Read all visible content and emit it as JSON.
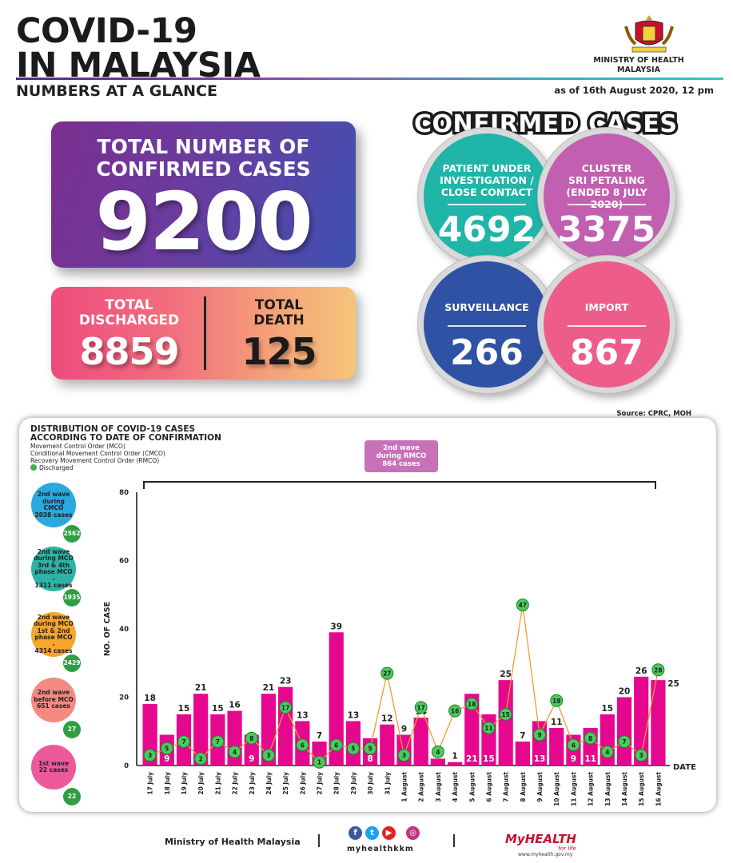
{
  "header": {
    "title_line1": "COVID-19",
    "title_line2": "IN MALAYSIA",
    "subtitle": "NUMBERS AT A GLANCE",
    "ministry": "MINISTRY OF HEALTH\nMALAYSIA",
    "as_of": "as of 16th August 2020, 12 pm"
  },
  "total": {
    "label": "TOTAL NUMBER OF\nCONFIRMED CASES",
    "value": "9200"
  },
  "discharged": {
    "label": "TOTAL\nDISCHARGED",
    "value": "8859"
  },
  "death": {
    "label": "TOTAL\nDEATH",
    "value": "125"
  },
  "confirmed": {
    "title": "CONFIRMED CASES",
    "puc": {
      "label": "PATIENT UNDER\nINVESTIGATION /\nCLOSE CONTACT",
      "value": "4692",
      "color": "#1fb5a8"
    },
    "cluster": {
      "label": "CLUSTER\nSRI PETALING\n(ENDED 8 JULY 2020)",
      "value": "3375",
      "color": "#c25fb0"
    },
    "surveillance": {
      "label": "SURVEILLANCE",
      "value": "266",
      "color": "#2f52a4"
    },
    "import": {
      "label": "IMPORT",
      "value": "867",
      "color": "#ee5d8a"
    }
  },
  "source": "Source: CPRC, MOH",
  "distribution": {
    "title": "DISTRIBUTION OF COVID-19 CASES\nACCORDING TO DATE OF CONFIRMATION",
    "legend": [
      "Movement Control Order (MCO)",
      "Conditional Movement Control Order (CMCO)",
      "Recovery Movement Control Order (RMCO)"
    ],
    "legend_discharged": "Discharged",
    "rmco_box": "2nd wave\nduring RMCO\n864 cases",
    "waves": [
      {
        "label": "2nd wave\nduring CMCO\n2038 cases",
        "discharged": "2562",
        "color": "#2aa8e0"
      },
      {
        "label": "2nd wave\nduring MCO\n3rd & 4th\nphase MCO -\n1311 cases",
        "discharged": "1935",
        "color": "#2db3a5"
      },
      {
        "label": "2nd wave\nduring MCO\n1st & 2nd\nphase MCO -\n4314 cases",
        "discharged": "2429",
        "color": "#f7a52b"
      },
      {
        "label": "2nd wave\nbefore MCO\n651 cases",
        "discharged": "27",
        "color": "#f28b80"
      },
      {
        "label": "1st wave\n22 cases",
        "discharged": "22",
        "color": "#ec5a9c"
      }
    ]
  },
  "chart_data": {
    "type": "bar",
    "ylabel": "NO. OF CASE",
    "xlabel": "DATE",
    "ylim": [
      0,
      80
    ],
    "yticks": [
      0,
      20,
      40,
      60,
      80
    ],
    "grid": false,
    "categories": [
      "17 July",
      "18 July",
      "19 July",
      "20 July",
      "21 July",
      "22 July",
      "23 July",
      "24 July",
      "25 July",
      "26 July",
      "27 July",
      "28 July",
      "29 July",
      "30 July",
      "31 July",
      "1 August",
      "2 August",
      "3 August",
      "4 August",
      "5 August",
      "6 August",
      "7 August",
      "8 August",
      "9 August",
      "10 August",
      "11 August",
      "12 August",
      "13 August",
      "14 August",
      "15 August",
      "16 August"
    ],
    "series": [
      {
        "values": [
          18,
          9,
          15,
          21,
          15,
          16,
          9,
          21,
          23,
          13,
          7,
          39,
          13,
          8,
          12,
          9,
          14,
          2,
          1,
          21,
          15,
          25,
          7,
          13,
          11,
          9,
          11,
          15,
          20,
          26,
          25
        ],
        "color": "#e5088f"
      },
      {
        "name": "Discharged",
        "values": [
          3,
          5,
          7,
          2,
          7,
          4,
          8,
          3,
          17,
          6,
          1,
          6,
          5,
          5,
          27,
          3,
          17,
          4,
          16,
          18,
          11,
          15,
          47,
          9,
          19,
          6,
          8,
          4,
          7,
          3,
          28
        ],
        "color": "#f39a34"
      }
    ]
  },
  "footer": {
    "ministry": "Ministry of Health Malaysia",
    "handle": "myhealthkkm",
    "brand": "MyHEALTH",
    "brand_tag": "for life",
    "url": "www.myhealth.gov.my"
  }
}
